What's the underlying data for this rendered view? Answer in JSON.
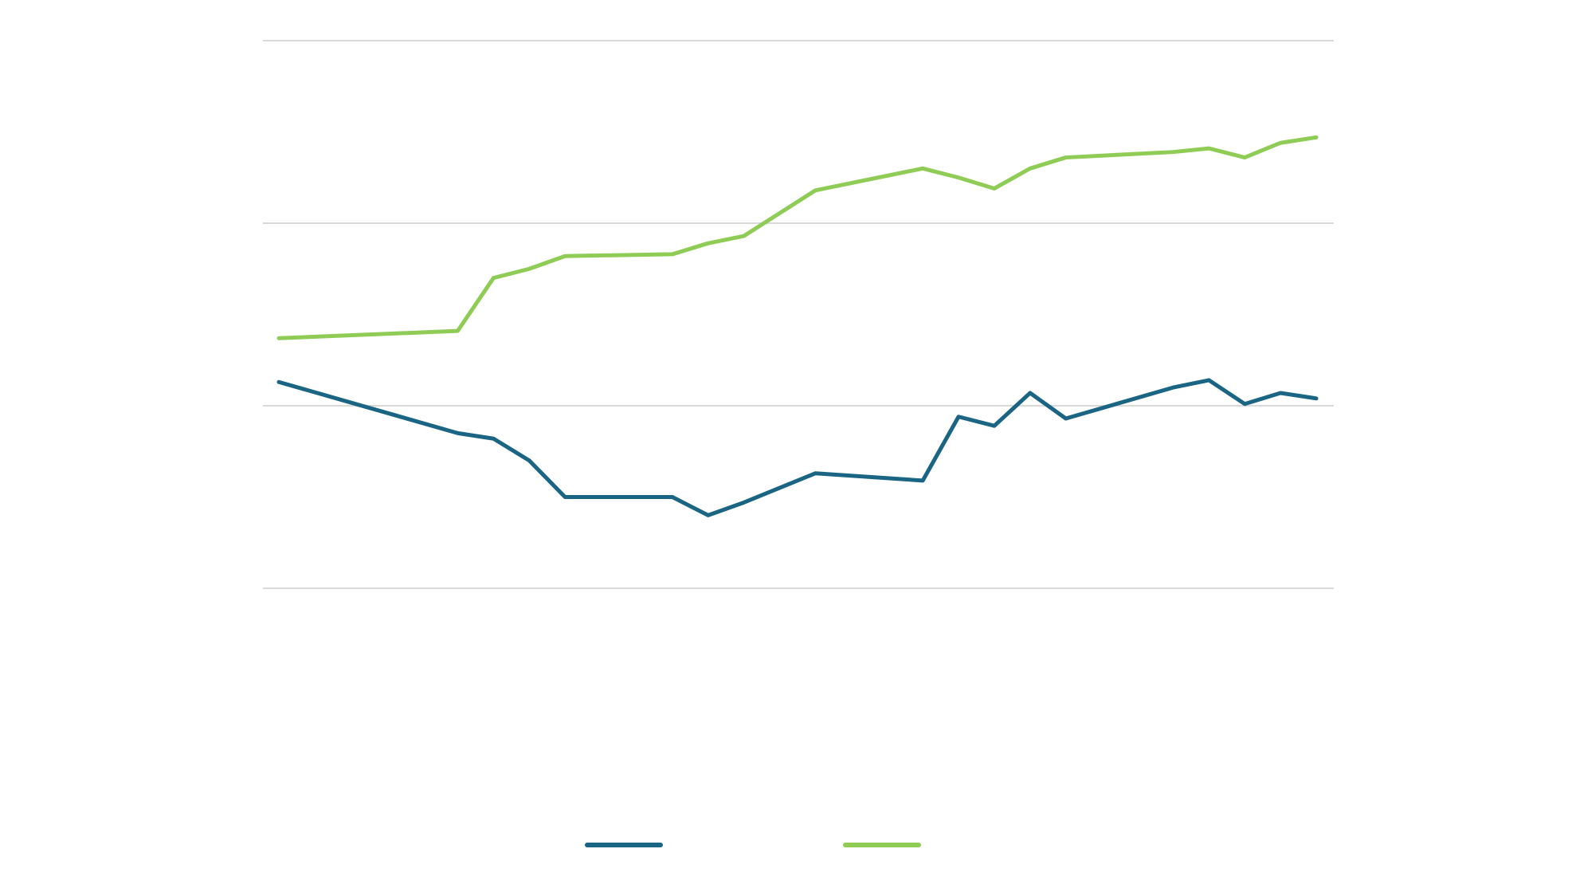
{
  "chart_data": {
    "type": "line",
    "x": [
      0,
      5,
      6,
      7,
      8,
      11,
      12,
      13,
      15,
      18,
      19,
      20,
      21,
      22,
      25,
      26,
      27,
      28,
      29
    ],
    "xlim": [
      0,
      29
    ],
    "series": [
      {
        "color": "#1a6584",
        "values": [
          1.13,
          0.85,
          0.82,
          0.7,
          0.5,
          0.5,
          0.4,
          0.47,
          0.63,
          0.59,
          0.94,
          0.89,
          1.07,
          0.93,
          1.1,
          1.14,
          1.01,
          1.07,
          1.04
        ]
      },
      {
        "color": "#8fcc55",
        "values": [
          1.37,
          1.41,
          1.7,
          1.75,
          1.82,
          1.83,
          1.89,
          1.93,
          2.18,
          2.3,
          2.25,
          2.19,
          2.3,
          2.36,
          2.39,
          2.41,
          2.36,
          2.44,
          2.47
        ]
      }
    ],
    "ylim": [
      0,
      3
    ],
    "yticks": [
      0,
      1,
      2,
      3
    ],
    "grid": true
  }
}
